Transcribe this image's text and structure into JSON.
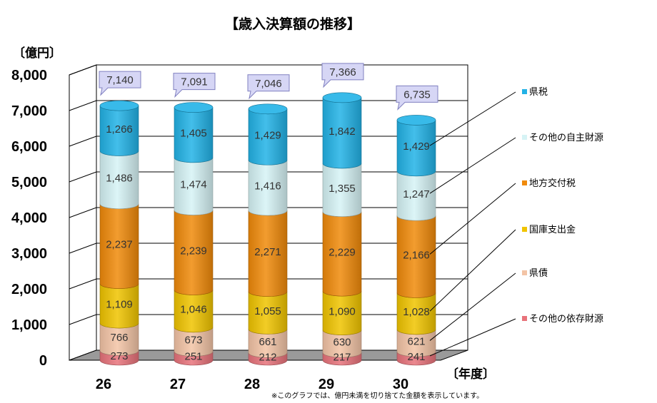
{
  "chart_data": {
    "type": "bar",
    "stacked": true,
    "title": "【歳入決算額の推移】",
    "ylabel": "〔億円〕",
    "xlabel": "〔年度〕",
    "ylim": [
      0,
      8000
    ],
    "yticks": [
      "0",
      "1,000",
      "2,000",
      "3,000",
      "4,000",
      "5,000",
      "6,000",
      "7,000",
      "8,000"
    ],
    "categories": [
      "26",
      "27",
      "28",
      "29",
      "30"
    ],
    "totals": [
      7140,
      7091,
      7046,
      7366,
      6735
    ],
    "total_labels": [
      "7,140",
      "7,091",
      "7,046",
      "7,366",
      "6,735"
    ],
    "series": [
      {
        "name": "その他の依存財源",
        "color": "#e8737b",
        "values": [
          273,
          251,
          212,
          217,
          241
        ],
        "labels": [
          "273",
          "251",
          "212",
          "217",
          "241"
        ]
      },
      {
        "name": "県債",
        "color": "#f3c4a6",
        "values": [
          766,
          673,
          661,
          630,
          621
        ],
        "labels": [
          "766",
          "673",
          "661",
          "630",
          "621"
        ]
      },
      {
        "name": "国庫支出金",
        "color": "#f0c400",
        "values": [
          1109,
          1046,
          1055,
          1090,
          1028
        ],
        "labels": [
          "1,109",
          "1,046",
          "1,055",
          "1,090",
          "1,028"
        ]
      },
      {
        "name": "地方交付税",
        "color": "#f08a0a",
        "values": [
          2237,
          2239,
          2271,
          2229,
          2166
        ],
        "labels": [
          "2,237",
          "2,239",
          "2,271",
          "2,229",
          "2,166"
        ]
      },
      {
        "name": "その他の自主財源",
        "color": "#d6f3f5",
        "values": [
          1486,
          1474,
          1416,
          1355,
          1247
        ],
        "labels": [
          "1,486",
          "1,474",
          "1,416",
          "1,355",
          "1,247"
        ]
      },
      {
        "name": "県税",
        "color": "#22b2e6",
        "values": [
          1266,
          1405,
          1429,
          1842,
          1429
        ],
        "labels": [
          "1,266",
          "1,405",
          "1,429",
          "1,842",
          "1,429"
        ]
      }
    ],
    "legend_position": "right",
    "grid": true,
    "note": "※このグラフでは、億円未満を切り捨てた金額を表示しています。"
  }
}
